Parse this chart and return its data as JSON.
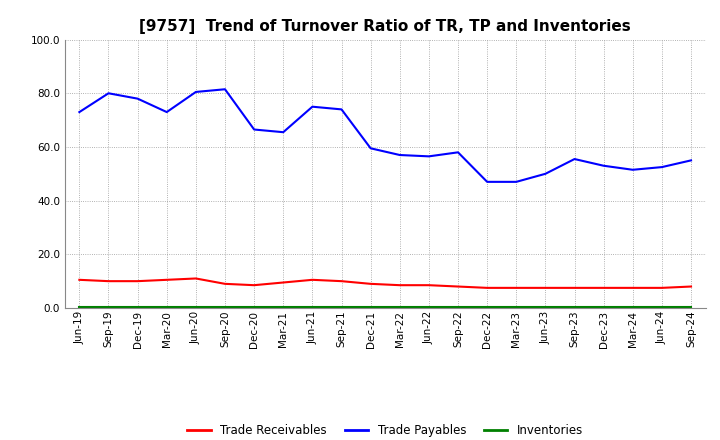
{
  "title": "[9757]  Trend of Turnover Ratio of TR, TP and Inventories",
  "x_labels": [
    "Jun-19",
    "Sep-19",
    "Dec-19",
    "Mar-20",
    "Jun-20",
    "Sep-20",
    "Dec-20",
    "Mar-21",
    "Jun-21",
    "Sep-21",
    "Dec-21",
    "Mar-22",
    "Jun-22",
    "Sep-22",
    "Dec-22",
    "Mar-23",
    "Jun-23",
    "Sep-23",
    "Dec-23",
    "Mar-24",
    "Jun-24",
    "Sep-24"
  ],
  "trade_payables": [
    73.0,
    80.0,
    78.0,
    73.0,
    80.5,
    81.5,
    66.5,
    65.5,
    75.0,
    74.0,
    59.5,
    57.0,
    56.5,
    58.0,
    47.0,
    47.0,
    50.0,
    55.5,
    53.0,
    51.5,
    52.5,
    55.0
  ],
  "trade_receivables": [
    10.5,
    10.0,
    10.0,
    10.5,
    11.0,
    9.0,
    8.5,
    9.5,
    10.5,
    10.0,
    9.0,
    8.5,
    8.5,
    8.0,
    7.5,
    7.5,
    7.5,
    7.5,
    7.5,
    7.5,
    7.5,
    8.0
  ],
  "inventories": [
    0.5,
    0.5,
    0.5,
    0.5,
    0.5,
    0.5,
    0.5,
    0.5,
    0.5,
    0.5,
    0.5,
    0.5,
    0.5,
    0.5,
    0.5,
    0.5,
    0.5,
    0.5,
    0.5,
    0.5,
    0.5,
    0.5
  ],
  "color_tp": "#0000FF",
  "color_tr": "#FF0000",
  "color_inv": "#008000",
  "ylim": [
    0.0,
    100.0
  ],
  "yticks": [
    0.0,
    20.0,
    40.0,
    60.0,
    80.0,
    100.0
  ],
  "background_color": "#FFFFFF",
  "plot_bg_color": "#FFFFFF",
  "grid_color": "#999999",
  "title_fontsize": 11,
  "tick_fontsize": 7.5,
  "legend_fontsize": 8.5,
  "legend_labels": [
    "Trade Receivables",
    "Trade Payables",
    "Inventories"
  ]
}
